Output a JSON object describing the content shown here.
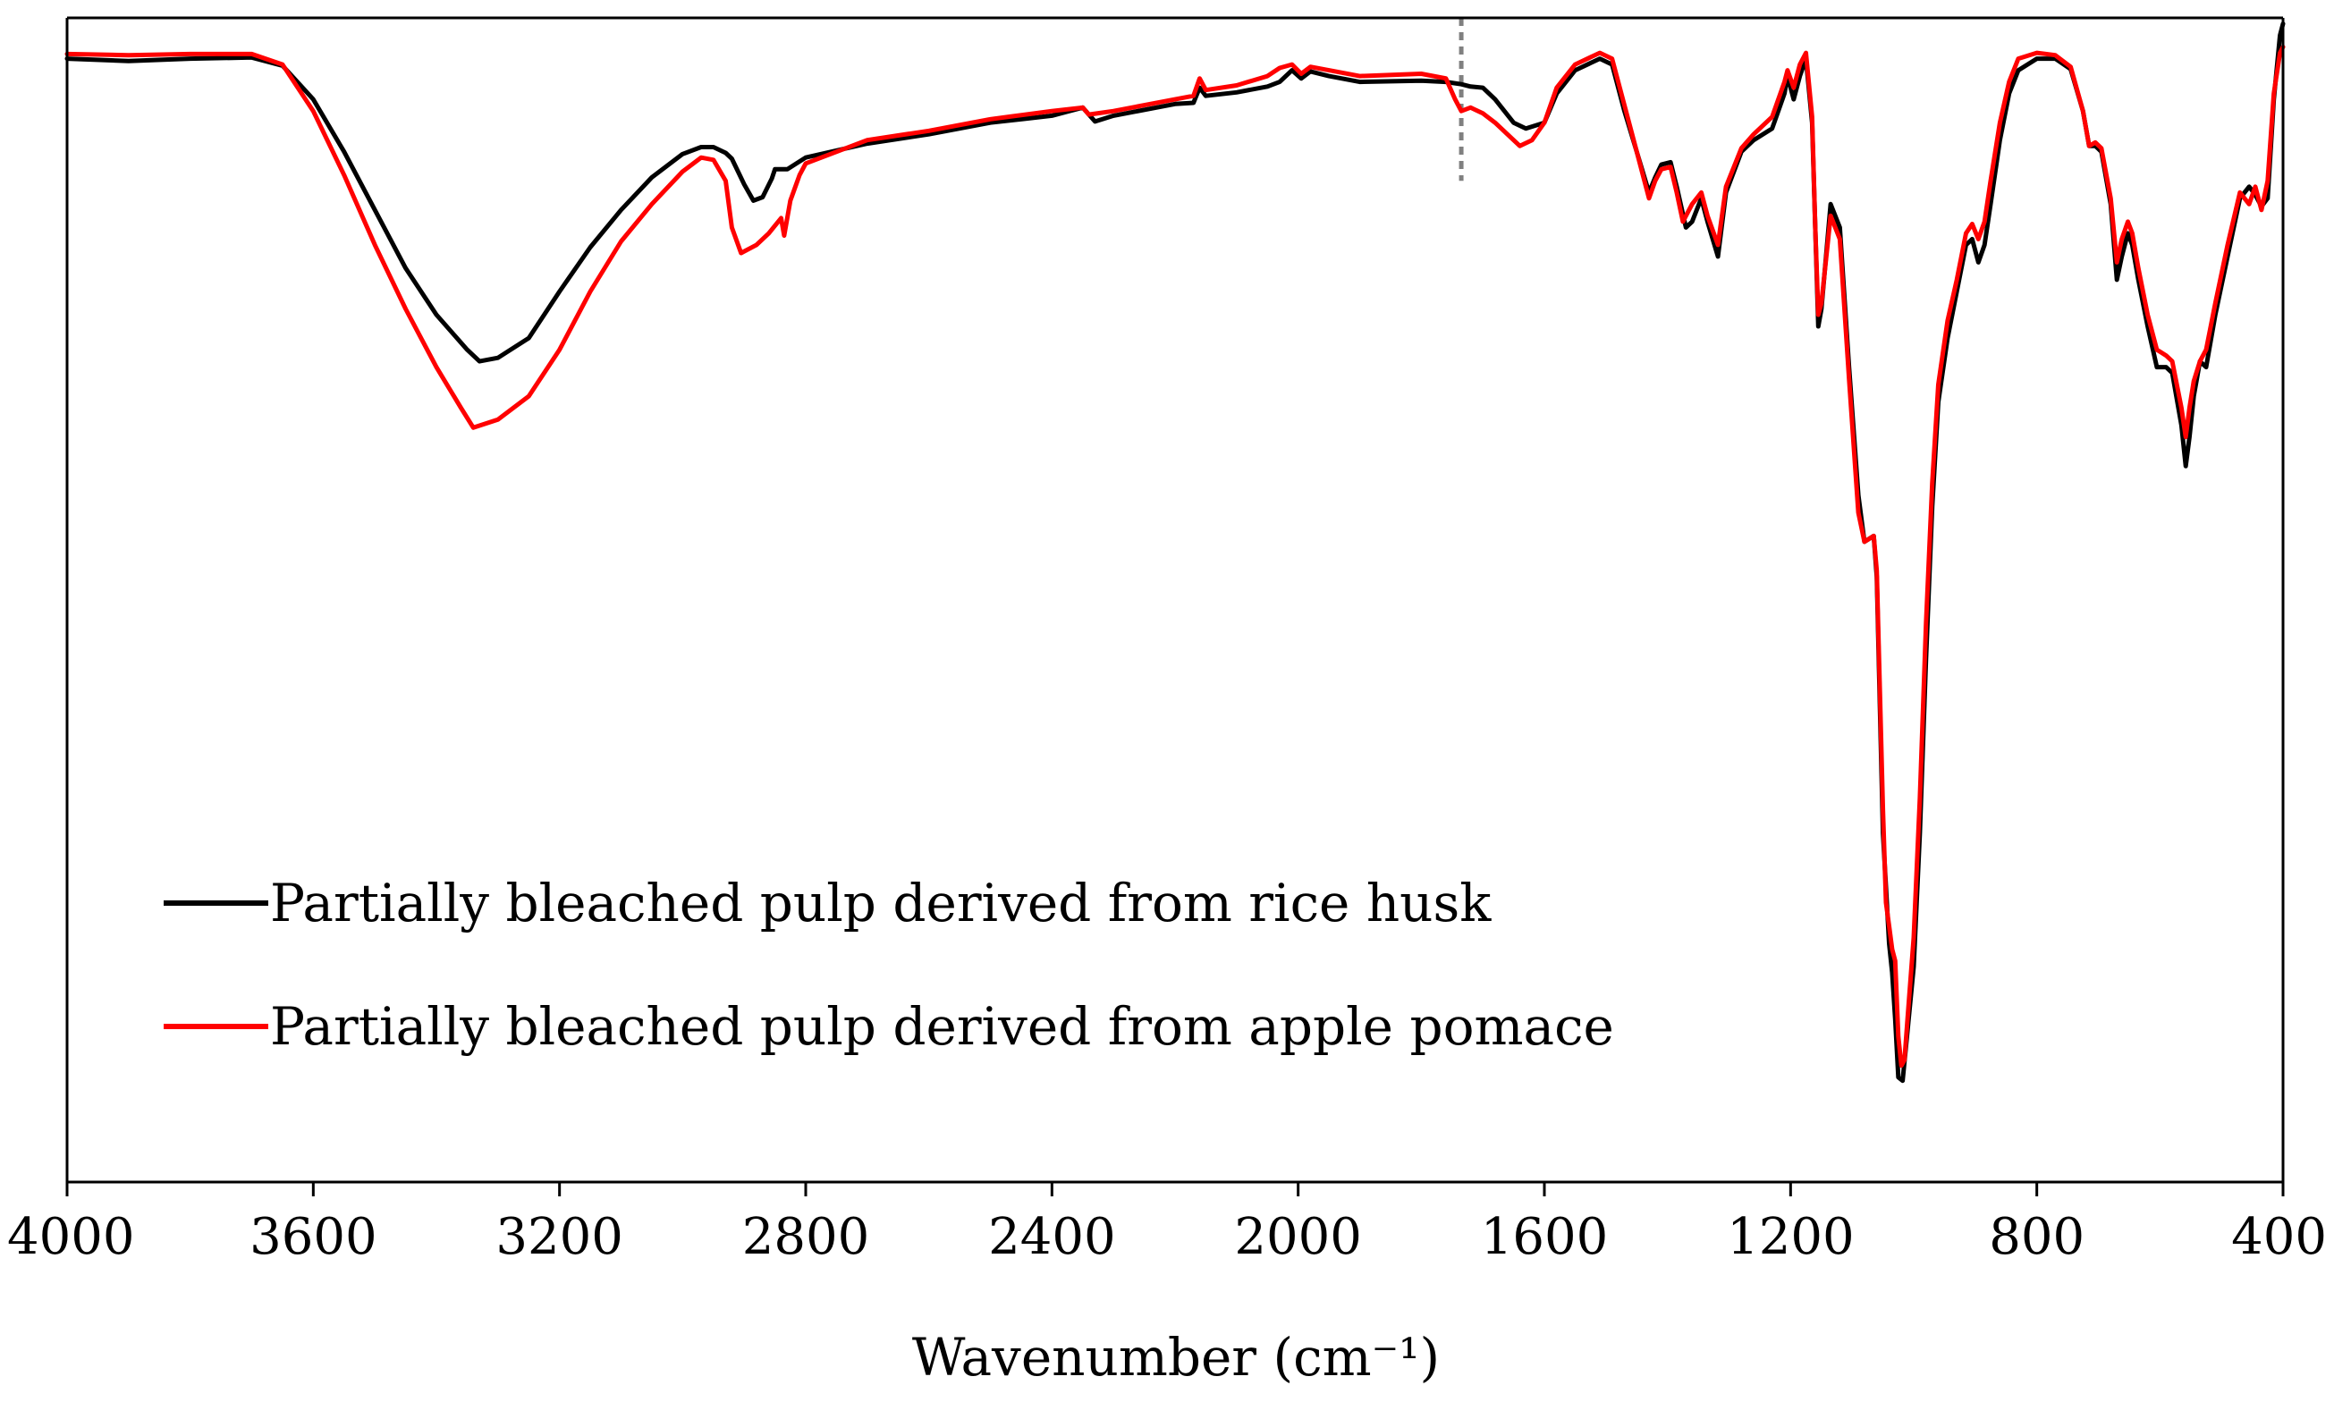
{
  "chart_data": {
    "type": "line",
    "title": "",
    "xlabel": "Wavenumber (cm⁻¹)",
    "ylabel": "",
    "xlim": [
      4000,
      400
    ],
    "x_reversed": true,
    "ylim": [
      0,
      100
    ],
    "y_ticks_shown": false,
    "grid": false,
    "x_ticks": [
      {
        "value": 4000,
        "label": "4000"
      },
      {
        "value": 3600,
        "label": "3600"
      },
      {
        "value": 3200,
        "label": "3200"
      },
      {
        "value": 2800,
        "label": "2800"
      },
      {
        "value": 2400,
        "label": "2400"
      },
      {
        "value": 2000,
        "label": "2000"
      },
      {
        "value": 1600,
        "label": "1600"
      },
      {
        "value": 1200,
        "label": "1200"
      },
      {
        "value": 800,
        "label": "800"
      },
      {
        "value": 400,
        "label": "400"
      }
    ],
    "annotations": [
      {
        "type": "dashed-vertical-line",
        "x": 1735,
        "y_range": [
          86,
          100
        ],
        "color": "#808080"
      }
    ],
    "legend": {
      "placement": "lower-left"
    },
    "series": [
      {
        "name": "Partially bleached pulp derived from rice husk",
        "color": "#000000",
        "points": [
          [
            4000,
            96.5
          ],
          [
            3900,
            96.3
          ],
          [
            3800,
            96.5
          ],
          [
            3700,
            96.6
          ],
          [
            3650,
            95.9
          ],
          [
            3600,
            93.0
          ],
          [
            3550,
            88.5
          ],
          [
            3500,
            83.5
          ],
          [
            3450,
            78.5
          ],
          [
            3400,
            74.5
          ],
          [
            3350,
            71.5
          ],
          [
            3330,
            70.5
          ],
          [
            3300,
            70.8
          ],
          [
            3250,
            72.5
          ],
          [
            3200,
            76.5
          ],
          [
            3150,
            80.3
          ],
          [
            3100,
            83.5
          ],
          [
            3050,
            86.3
          ],
          [
            3000,
            88.3
          ],
          [
            2970,
            88.9
          ],
          [
            2950,
            88.9
          ],
          [
            2930,
            88.4
          ],
          [
            2920,
            87.9
          ],
          [
            2900,
            85.7
          ],
          [
            2885,
            84.3
          ],
          [
            2870,
            84.6
          ],
          [
            2855,
            86.2
          ],
          [
            2850,
            87.0
          ],
          [
            2830,
            87.0
          ],
          [
            2800,
            88.0
          ],
          [
            2700,
            89.2
          ],
          [
            2600,
            90.0
          ],
          [
            2500,
            91.0
          ],
          [
            2400,
            91.6
          ],
          [
            2350,
            92.3
          ],
          [
            2330,
            91.1
          ],
          [
            2300,
            91.6
          ],
          [
            2200,
            92.6
          ],
          [
            2170,
            92.7
          ],
          [
            2160,
            94.0
          ],
          [
            2150,
            93.3
          ],
          [
            2100,
            93.6
          ],
          [
            2050,
            94.1
          ],
          [
            2030,
            94.5
          ],
          [
            2010,
            95.5
          ],
          [
            1995,
            94.8
          ],
          [
            1980,
            95.4
          ],
          [
            1950,
            95.0
          ],
          [
            1900,
            94.5
          ],
          [
            1800,
            94.6
          ],
          [
            1760,
            94.5
          ],
          [
            1735,
            94.3
          ],
          [
            1720,
            94.1
          ],
          [
            1700,
            94.0
          ],
          [
            1680,
            93.0
          ],
          [
            1650,
            91.0
          ],
          [
            1630,
            90.5
          ],
          [
            1600,
            91.0
          ],
          [
            1580,
            93.5
          ],
          [
            1550,
            95.5
          ],
          [
            1510,
            96.5
          ],
          [
            1490,
            96.0
          ],
          [
            1470,
            92.0
          ],
          [
            1450,
            88.5
          ],
          [
            1430,
            85.0
          ],
          [
            1420,
            86.3
          ],
          [
            1410,
            87.4
          ],
          [
            1395,
            87.6
          ],
          [
            1385,
            85.5
          ],
          [
            1370,
            82.0
          ],
          [
            1360,
            82.5
          ],
          [
            1345,
            84.5
          ],
          [
            1335,
            82.5
          ],
          [
            1318,
            79.5
          ],
          [
            1305,
            85.0
          ],
          [
            1280,
            88.5
          ],
          [
            1260,
            89.5
          ],
          [
            1230,
            90.5
          ],
          [
            1210,
            93.5
          ],
          [
            1205,
            95.0
          ],
          [
            1195,
            93.0
          ],
          [
            1185,
            95.0
          ],
          [
            1175,
            96.5
          ],
          [
            1165,
            91.0
          ],
          [
            1160,
            82.0
          ],
          [
            1155,
            73.5
          ],
          [
            1150,
            75.0
          ],
          [
            1135,
            84.0
          ],
          [
            1120,
            82.0
          ],
          [
            1105,
            70.0
          ],
          [
            1090,
            59.0
          ],
          [
            1080,
            55.0
          ],
          [
            1065,
            55.5
          ],
          [
            1060,
            52.0
          ],
          [
            1050,
            30.0
          ],
          [
            1040,
            20.5
          ],
          [
            1035,
            18.0
          ],
          [
            1030,
            14.0
          ],
          [
            1025,
            9.0
          ],
          [
            1018,
            8.7
          ],
          [
            1010,
            13.0
          ],
          [
            1000,
            18.5
          ],
          [
            990,
            30.0
          ],
          [
            980,
            45.0
          ],
          [
            970,
            58.0
          ],
          [
            960,
            67.0
          ],
          [
            945,
            72.5
          ],
          [
            930,
            76.5
          ],
          [
            915,
            80.5
          ],
          [
            905,
            81.0
          ],
          [
            895,
            79.0
          ],
          [
            885,
            80.5
          ],
          [
            875,
            84.0
          ],
          [
            860,
            89.5
          ],
          [
            845,
            93.5
          ],
          [
            830,
            95.5
          ],
          [
            800,
            96.5
          ],
          [
            770,
            96.5
          ],
          [
            745,
            95.6
          ],
          [
            725,
            92.0
          ],
          [
            715,
            89.0
          ],
          [
            705,
            89.0
          ],
          [
            695,
            88.5
          ],
          [
            680,
            84.0
          ],
          [
            670,
            77.5
          ],
          [
            662,
            79.5
          ],
          [
            652,
            81.5
          ],
          [
            645,
            80.5
          ],
          [
            635,
            77.5
          ],
          [
            620,
            73.5
          ],
          [
            605,
            70.0
          ],
          [
            590,
            70.0
          ],
          [
            580,
            69.5
          ],
          [
            565,
            65.0
          ],
          [
            558,
            61.5
          ],
          [
            552,
            64.0
          ],
          [
            545,
            67.5
          ],
          [
            535,
            70.5
          ],
          [
            525,
            70.0
          ],
          [
            510,
            74.5
          ],
          [
            490,
            79.5
          ],
          [
            470,
            84.5
          ],
          [
            455,
            85.5
          ],
          [
            445,
            84.8
          ],
          [
            435,
            83.8
          ],
          [
            425,
            84.5
          ],
          [
            415,
            93.0
          ],
          [
            405,
            98.5
          ],
          [
            400,
            99.5
          ]
        ]
      },
      {
        "name": "Partially bleached pulp derived from apple pomace",
        "color": "#ff0000",
        "points": [
          [
            4000,
            96.9
          ],
          [
            3900,
            96.8
          ],
          [
            3800,
            96.9
          ],
          [
            3700,
            96.9
          ],
          [
            3650,
            96.0
          ],
          [
            3600,
            92.0
          ],
          [
            3550,
            86.5
          ],
          [
            3500,
            80.5
          ],
          [
            3450,
            75.0
          ],
          [
            3400,
            70.0
          ],
          [
            3360,
            66.5
          ],
          [
            3340,
            64.8
          ],
          [
            3300,
            65.5
          ],
          [
            3250,
            67.5
          ],
          [
            3200,
            71.5
          ],
          [
            3150,
            76.5
          ],
          [
            3100,
            80.8
          ],
          [
            3050,
            84.0
          ],
          [
            3000,
            86.8
          ],
          [
            2970,
            88.0
          ],
          [
            2950,
            87.8
          ],
          [
            2930,
            86.0
          ],
          [
            2920,
            82.0
          ],
          [
            2905,
            79.8
          ],
          [
            2880,
            80.5
          ],
          [
            2860,
            81.5
          ],
          [
            2840,
            82.8
          ],
          [
            2835,
            81.3
          ],
          [
            2825,
            84.3
          ],
          [
            2810,
            86.5
          ],
          [
            2800,
            87.5
          ],
          [
            2700,
            89.5
          ],
          [
            2600,
            90.3
          ],
          [
            2500,
            91.3
          ],
          [
            2400,
            92.0
          ],
          [
            2350,
            92.3
          ],
          [
            2340,
            91.7
          ],
          [
            2300,
            92.0
          ],
          [
            2200,
            93.0
          ],
          [
            2170,
            93.3
          ],
          [
            2160,
            94.8
          ],
          [
            2150,
            93.8
          ],
          [
            2100,
            94.2
          ],
          [
            2050,
            95.0
          ],
          [
            2030,
            95.7
          ],
          [
            2010,
            96.0
          ],
          [
            1995,
            95.2
          ],
          [
            1980,
            95.8
          ],
          [
            1950,
            95.5
          ],
          [
            1900,
            95.0
          ],
          [
            1800,
            95.2
          ],
          [
            1760,
            94.8
          ],
          [
            1745,
            93.0
          ],
          [
            1735,
            92.0
          ],
          [
            1720,
            92.3
          ],
          [
            1700,
            91.8
          ],
          [
            1680,
            91.0
          ],
          [
            1660,
            90.0
          ],
          [
            1640,
            89.0
          ],
          [
            1620,
            89.5
          ],
          [
            1600,
            91.0
          ],
          [
            1580,
            94.0
          ],
          [
            1550,
            96.0
          ],
          [
            1510,
            97.0
          ],
          [
            1490,
            96.5
          ],
          [
            1470,
            92.5
          ],
          [
            1450,
            88.5
          ],
          [
            1430,
            84.5
          ],
          [
            1420,
            86.0
          ],
          [
            1410,
            87.0
          ],
          [
            1395,
            87.2
          ],
          [
            1385,
            85.0
          ],
          [
            1375,
            82.5
          ],
          [
            1360,
            84.0
          ],
          [
            1345,
            85.0
          ],
          [
            1335,
            83.0
          ],
          [
            1318,
            80.5
          ],
          [
            1305,
            85.5
          ],
          [
            1280,
            88.8
          ],
          [
            1260,
            90.0
          ],
          [
            1230,
            91.5
          ],
          [
            1210,
            94.5
          ],
          [
            1205,
            95.5
          ],
          [
            1195,
            94.0
          ],
          [
            1185,
            96.0
          ],
          [
            1175,
            97.0
          ],
          [
            1165,
            91.5
          ],
          [
            1160,
            82.0
          ],
          [
            1155,
            74.5
          ],
          [
            1150,
            75.5
          ],
          [
            1135,
            83.0
          ],
          [
            1120,
            81.0
          ],
          [
            1105,
            69.0
          ],
          [
            1090,
            57.5
          ],
          [
            1080,
            55.0
          ],
          [
            1065,
            55.5
          ],
          [
            1060,
            52.5
          ],
          [
            1050,
            32.0
          ],
          [
            1045,
            24.0
          ],
          [
            1040,
            22.0
          ],
          [
            1035,
            20.0
          ],
          [
            1030,
            19.0
          ],
          [
            1025,
            12.5
          ],
          [
            1020,
            10.0
          ],
          [
            1015,
            10.5
          ],
          [
            1010,
            14.0
          ],
          [
            1000,
            21.0
          ],
          [
            990,
            33.0
          ],
          [
            980,
            48.0
          ],
          [
            970,
            60.0
          ],
          [
            960,
            68.5
          ],
          [
            945,
            74.0
          ],
          [
            930,
            77.5
          ],
          [
            915,
            81.5
          ],
          [
            905,
            82.3
          ],
          [
            895,
            81.0
          ],
          [
            885,
            82.5
          ],
          [
            875,
            86.0
          ],
          [
            860,
            91.0
          ],
          [
            845,
            94.5
          ],
          [
            830,
            96.5
          ],
          [
            800,
            97.0
          ],
          [
            770,
            96.8
          ],
          [
            745,
            95.8
          ],
          [
            725,
            92.0
          ],
          [
            715,
            89.0
          ],
          [
            705,
            89.3
          ],
          [
            695,
            88.8
          ],
          [
            680,
            84.5
          ],
          [
            670,
            79.0
          ],
          [
            662,
            81.0
          ],
          [
            652,
            82.5
          ],
          [
            645,
            81.5
          ],
          [
            635,
            78.5
          ],
          [
            620,
            74.5
          ],
          [
            605,
            71.5
          ],
          [
            590,
            71.0
          ],
          [
            580,
            70.5
          ],
          [
            565,
            66.5
          ],
          [
            558,
            64.0
          ],
          [
            552,
            66.5
          ],
          [
            545,
            68.8
          ],
          [
            535,
            70.5
          ],
          [
            525,
            71.5
          ],
          [
            510,
            75.5
          ],
          [
            490,
            80.5
          ],
          [
            470,
            85.0
          ],
          [
            455,
            84.0
          ],
          [
            445,
            85.5
          ],
          [
            435,
            83.5
          ],
          [
            425,
            86.0
          ],
          [
            415,
            93.5
          ],
          [
            405,
            97.0
          ],
          [
            400,
            97.5
          ]
        ]
      }
    ]
  }
}
